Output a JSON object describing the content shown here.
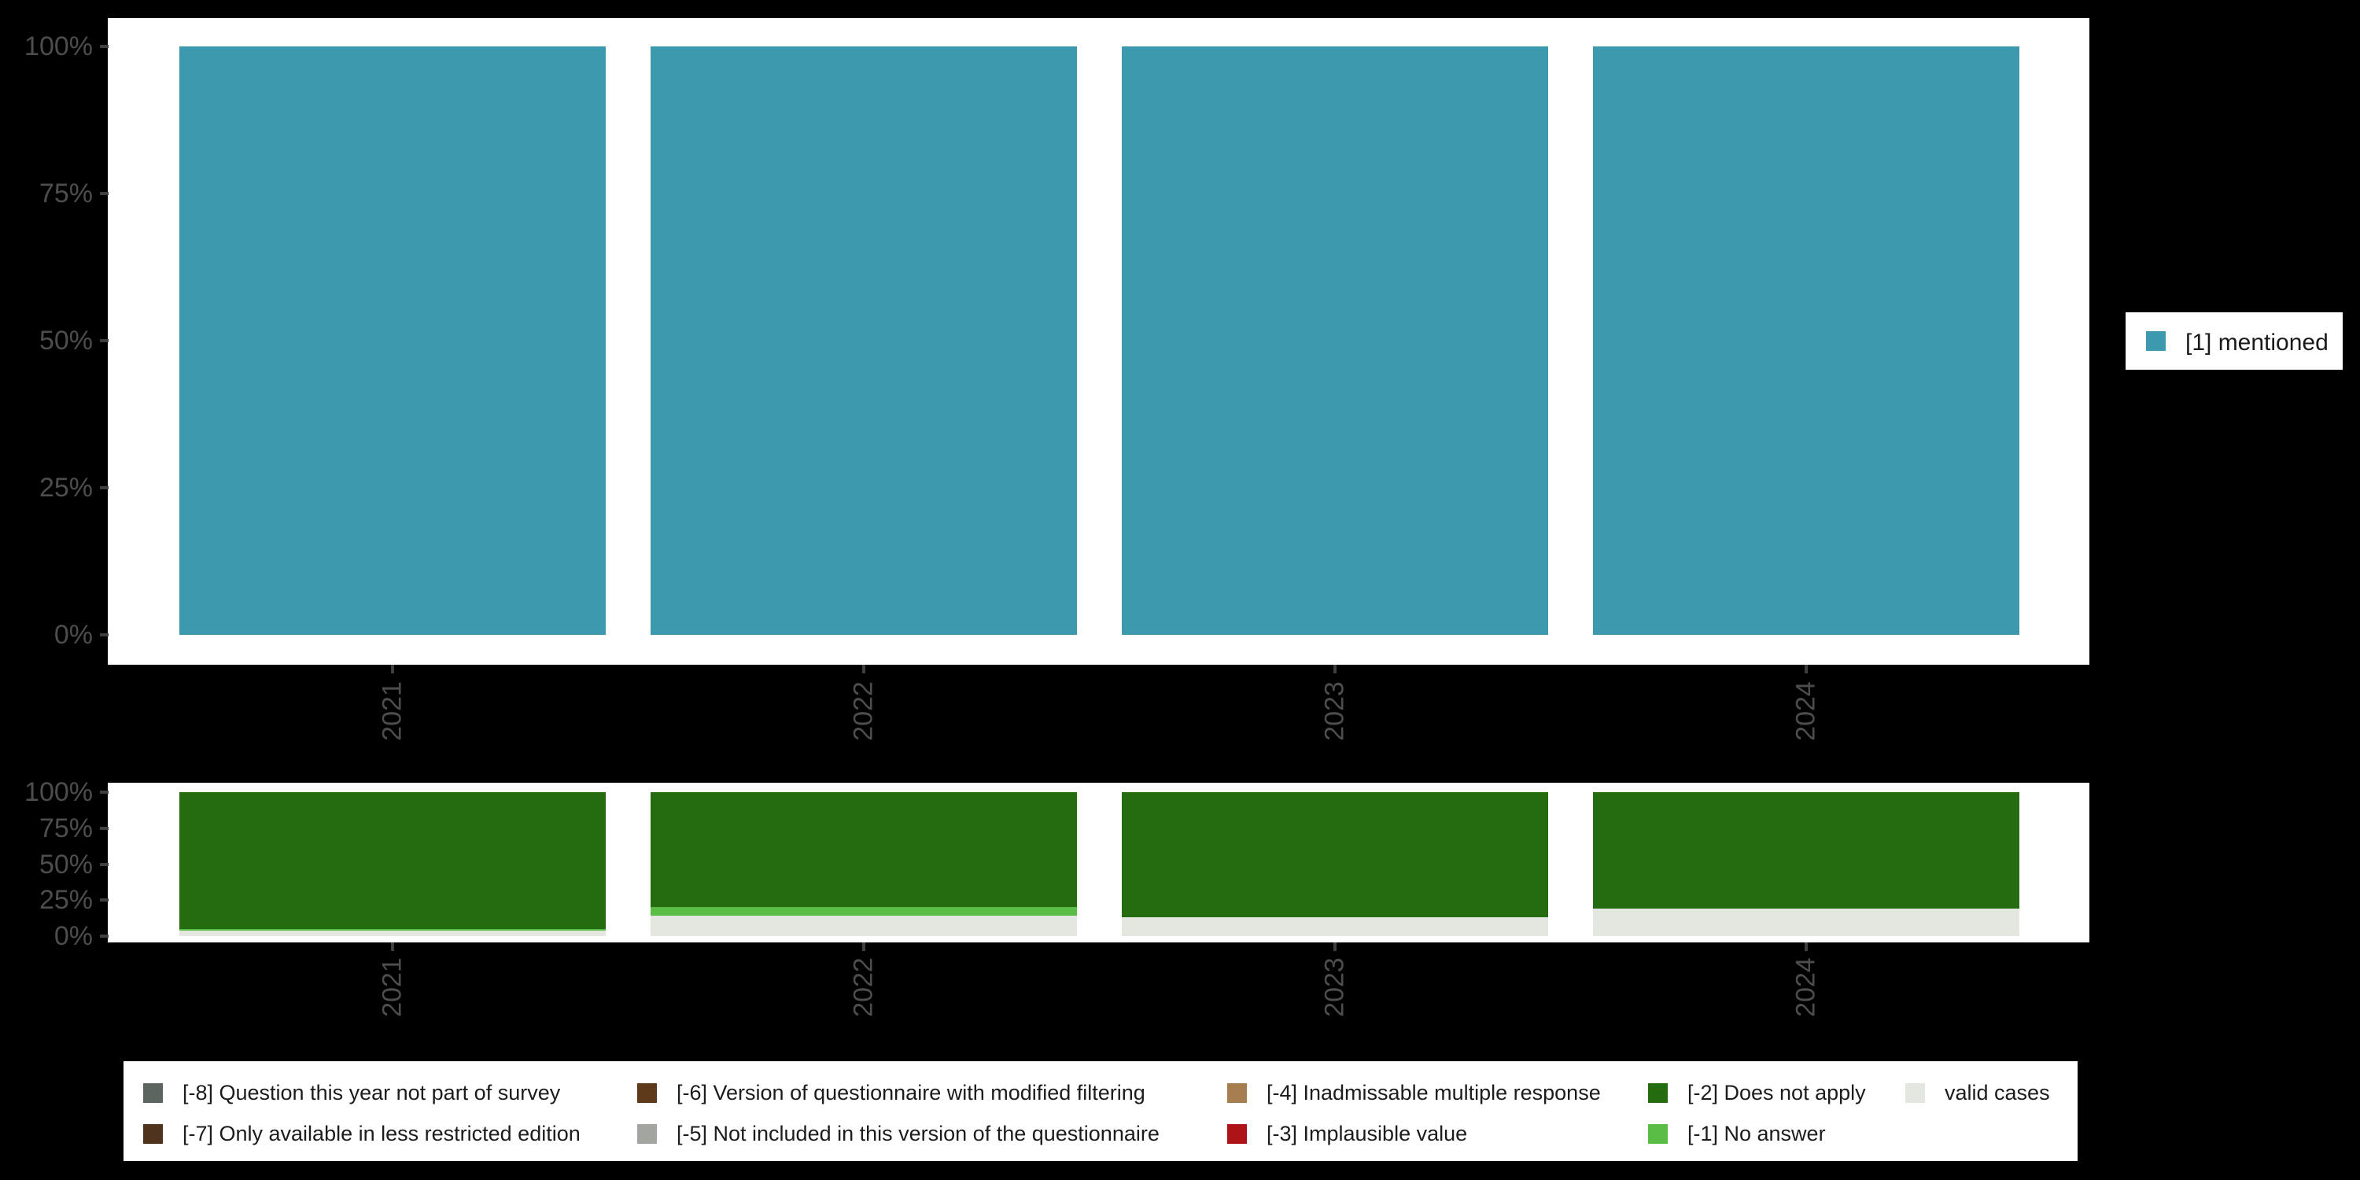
{
  "colors": {
    "background": "#000000",
    "panel": "#ffffff",
    "mentioned": "#3c99ae",
    "does_not_apply": "#256c10",
    "no_answer": "#5abd46",
    "valid_cases": "#e3e7e0",
    "axis_text": "#4d4d4d",
    "tick_mark": "#3f3f3f"
  },
  "axes": {
    "x_tick_labels": [
      "2021",
      "2022",
      "2023",
      "2024"
    ],
    "y_tick_labels": [
      "0%",
      "25%",
      "50%",
      "75%",
      "100%"
    ]
  },
  "chart_data": [
    {
      "type": "bar",
      "stacked": true,
      "title": "",
      "xlabel": "",
      "ylabel": "",
      "categories": [
        "2021",
        "2022",
        "2023",
        "2024"
      ],
      "series": [
        {
          "name": "[1] mentioned",
          "color": "#3c99ae",
          "values": [
            100,
            100,
            100,
            100
          ]
        }
      ],
      "ylim": [
        0,
        100
      ],
      "yticks_pct": [
        0,
        25,
        50,
        75,
        100
      ],
      "ytick_labels": [
        "0%",
        "25%",
        "50%",
        "75%",
        "100%"
      ],
      "grid": false,
      "legend_position": "right"
    },
    {
      "type": "bar",
      "stacked": true,
      "title": "",
      "xlabel": "",
      "ylabel": "",
      "categories": [
        "2021",
        "2022",
        "2023",
        "2024"
      ],
      "series": [
        {
          "name": "valid cases",
          "color": "#e3e7e0",
          "values": [
            4,
            14,
            13,
            19
          ]
        },
        {
          "name": "[-1] No answer",
          "color": "#5abd46",
          "values": [
            1,
            6,
            0,
            0
          ]
        },
        {
          "name": "[-2] Does not apply",
          "color": "#256c10",
          "values": [
            95,
            80,
            87,
            81
          ]
        }
      ],
      "ylim": [
        0,
        100
      ],
      "yticks_pct": [
        0,
        25,
        50,
        75,
        100
      ],
      "ytick_labels": [
        "0%",
        "25%",
        "50%",
        "75%",
        "100%"
      ],
      "grid": false,
      "legend_position": "bottom"
    }
  ],
  "legend_right": {
    "items": [
      {
        "label": "[1] mentioned",
        "color": "#3c99ae"
      }
    ]
  },
  "legend_bottom": {
    "items": [
      {
        "label": "[-8] Question this year not part of survey",
        "color": "#5d6561",
        "col": 0,
        "row": 0
      },
      {
        "label": "[-7] Only available in less restricted edition",
        "color": "#4f331c",
        "col": 0,
        "row": 1
      },
      {
        "label": "[-6] Version of questionnaire with modified filtering",
        "color": "#5e3a1a",
        "col": 1,
        "row": 0
      },
      {
        "label": "[-5] Not included in this version of the questionnaire",
        "color": "#a2a5a0",
        "col": 1,
        "row": 1
      },
      {
        "label": "[-4] Inadmissable multiple response",
        "color": "#a57d4e",
        "col": 2,
        "row": 0
      },
      {
        "label": "[-3] Implausible value",
        "color": "#ad1317",
        "col": 2,
        "row": 1
      },
      {
        "label": "[-2] Does not apply",
        "color": "#256c10",
        "col": 3,
        "row": 0
      },
      {
        "label": "[-1] No answer",
        "color": "#5abd46",
        "col": 3,
        "row": 1
      },
      {
        "label": "valid cases",
        "color": "#e3e7e0",
        "col": 4,
        "row": 0
      }
    ]
  }
}
